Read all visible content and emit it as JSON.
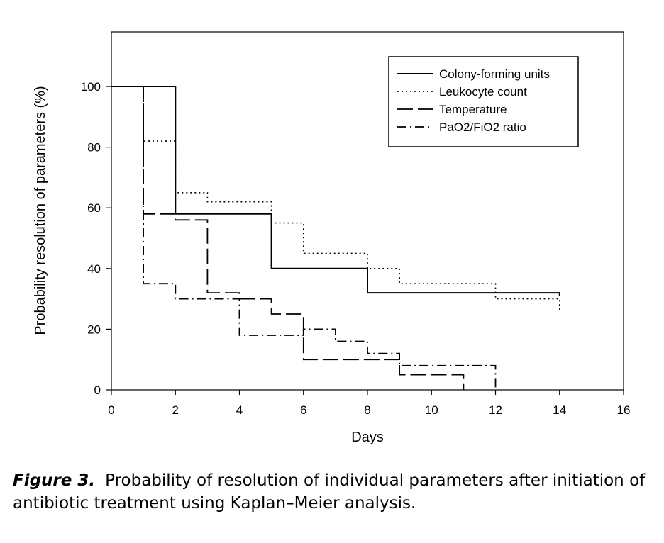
{
  "chart_data": {
    "type": "line",
    "step": true,
    "xlabel": "Days",
    "ylabel": "Probability resolution of parameters (%)",
    "xlim": [
      0,
      16
    ],
    "ylim": [
      0,
      118
    ],
    "x_ticks": [
      "0",
      "2",
      "4",
      "6",
      "8",
      "10",
      "12",
      "14",
      "16"
    ],
    "y_ticks": [
      "0",
      "20",
      "40",
      "60",
      "80",
      "100"
    ],
    "grid": false,
    "legend_position": "top-right",
    "series": [
      {
        "name": "Colony-forming units",
        "style": "solid",
        "points": [
          [
            0,
            100
          ],
          [
            2,
            100
          ],
          [
            2,
            58
          ],
          [
            5,
            58
          ],
          [
            5,
            40
          ],
          [
            8,
            40
          ],
          [
            8,
            32
          ],
          [
            14,
            32
          ],
          [
            14,
            31
          ]
        ]
      },
      {
        "name": "Leukocyte count",
        "style": "dotted",
        "points": [
          [
            1,
            100
          ],
          [
            1,
            82
          ],
          [
            2,
            82
          ],
          [
            2,
            65
          ],
          [
            3,
            65
          ],
          [
            3,
            62
          ],
          [
            5,
            62
          ],
          [
            5,
            55
          ],
          [
            6,
            55
          ],
          [
            6,
            45
          ],
          [
            8,
            45
          ],
          [
            8,
            40
          ],
          [
            9,
            40
          ],
          [
            9,
            35
          ],
          [
            12,
            35
          ],
          [
            12,
            30
          ],
          [
            14,
            30
          ],
          [
            14,
            26
          ]
        ]
      },
      {
        "name": "Temperature",
        "style": "dashed",
        "points": [
          [
            1,
            100
          ],
          [
            1,
            58
          ],
          [
            2,
            58
          ],
          [
            2,
            56
          ],
          [
            3,
            56
          ],
          [
            3,
            32
          ],
          [
            4,
            32
          ],
          [
            4,
            30
          ],
          [
            5,
            30
          ],
          [
            5,
            25
          ],
          [
            6,
            25
          ],
          [
            6,
            10
          ],
          [
            9,
            10
          ],
          [
            9,
            5
          ],
          [
            11,
            5
          ],
          [
            11,
            0
          ]
        ]
      },
      {
        "name": "PaO2/FiO2 ratio",
        "style": "dash-dot",
        "points": [
          [
            1,
            100
          ],
          [
            1,
            35
          ],
          [
            2,
            35
          ],
          [
            2,
            30
          ],
          [
            4,
            30
          ],
          [
            4,
            18
          ],
          [
            6,
            18
          ],
          [
            6,
            20
          ],
          [
            7,
            20
          ],
          [
            7,
            16
          ],
          [
            8,
            16
          ],
          [
            8,
            12
          ],
          [
            9,
            12
          ],
          [
            9,
            8
          ],
          [
            12,
            8
          ],
          [
            12,
            0
          ]
        ]
      }
    ]
  },
  "caption": {
    "label": "Figure 3.",
    "text": "Probability of resolution of individual parameters after initiation of antibiotic treatment using Kaplan–Meier analysis."
  }
}
